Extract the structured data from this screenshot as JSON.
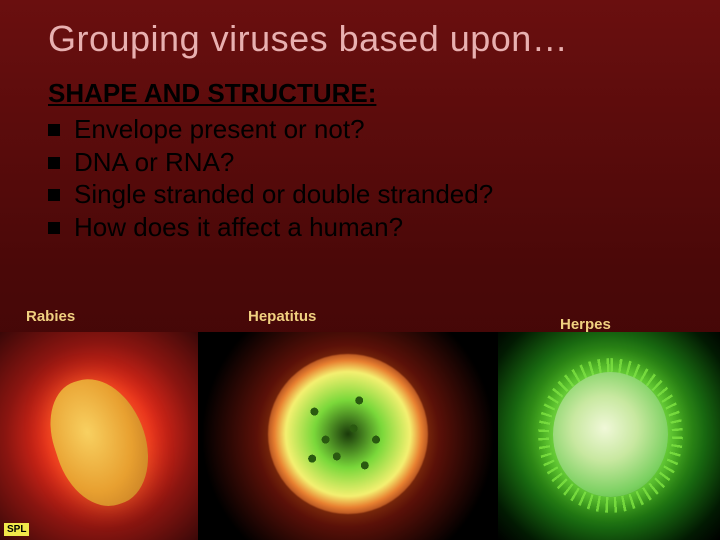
{
  "title": "Grouping viruses based upon…",
  "heading": "SHAPE AND STRUCTURE:",
  "bullets": [
    "Envelope present or not?",
    "DNA or RNA?",
    "Single stranded or double stranded?",
    "How does it affect a human?"
  ],
  "labels": {
    "rabies": "Rabies",
    "hepatitus": "Hepatitus",
    "herpes": "Herpes"
  },
  "rabies_tag": "SPL",
  "colors": {
    "title": "#e8b0b0",
    "label": "#f0d080",
    "bg_top": "#6a0f0f",
    "bg_bottom": "#3a0505"
  }
}
